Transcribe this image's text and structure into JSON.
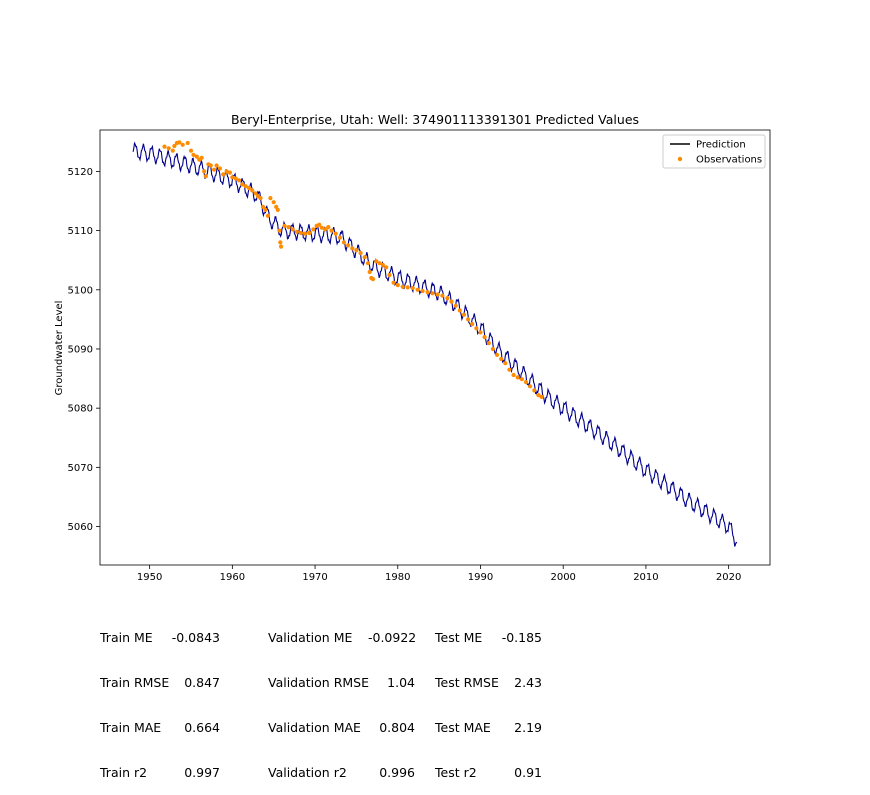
{
  "chart_data": {
    "type": "line",
    "title": "Beryl-Enterprise, Utah: Well: 374901113391301 Predicted Values",
    "xlabel": "",
    "ylabel": "Groundwater Level",
    "xlim": [
      1944,
      2025
    ],
    "ylim": [
      5053.5,
      5127
    ],
    "x_ticks": [
      1950,
      1960,
      1970,
      1980,
      1990,
      2000,
      2010,
      2020
    ],
    "y_ticks": [
      5060,
      5070,
      5080,
      5090,
      5100,
      5110,
      5120
    ],
    "legend_position": "top-right",
    "grid": false,
    "series": [
      {
        "name": "Prediction",
        "kind": "line",
        "color": "#00008b",
        "x_range": [
          1948.0,
          2021.0
        ],
        "trend_anchors": [
          [
            1948.0,
            5123.5
          ],
          [
            1950,
            5123
          ],
          [
            1955,
            5121
          ],
          [
            1960,
            5118.5
          ],
          [
            1963,
            5116
          ],
          [
            1964.5,
            5112
          ],
          [
            1966,
            5110
          ],
          [
            1970,
            5109.5
          ],
          [
            1973,
            5109
          ],
          [
            1975,
            5106.5
          ],
          [
            1977,
            5104
          ],
          [
            1980,
            5102
          ],
          [
            1983,
            5100.5
          ],
          [
            1985,
            5099.5
          ],
          [
            1987,
            5097.5
          ],
          [
            1990,
            5093.5
          ],
          [
            1992,
            5090
          ],
          [
            1995,
            5086
          ],
          [
            1998,
            5082
          ],
          [
            2000,
            5080
          ],
          [
            2005,
            5075
          ],
          [
            2010,
            5069.5
          ],
          [
            2015,
            5064.5
          ],
          [
            2020,
            5060
          ],
          [
            2021.0,
            5057.5
          ]
        ],
        "seasonal_amplitude": 1.2
      },
      {
        "name": "Observations",
        "kind": "scatter",
        "color": "#ff8c00",
        "points": [
          [
            1951.8,
            5124.2
          ],
          [
            1952.3,
            5123.9
          ],
          [
            1952.8,
            5123.5
          ],
          [
            1953.0,
            5124.3
          ],
          [
            1953.3,
            5124.8
          ],
          [
            1953.6,
            5124.9
          ],
          [
            1954.0,
            5124.5
          ],
          [
            1954.6,
            5124.8
          ],
          [
            1955.0,
            5123.5
          ],
          [
            1955.3,
            5122.8
          ],
          [
            1955.7,
            5122.5
          ],
          [
            1956.0,
            5122.0
          ],
          [
            1956.3,
            5122.3
          ],
          [
            1956.6,
            5120.0
          ],
          [
            1956.8,
            5119.2
          ],
          [
            1957.1,
            5121.2
          ],
          [
            1957.4,
            5121.0
          ],
          [
            1957.8,
            5120.3
          ],
          [
            1958.1,
            5121.0
          ],
          [
            1958.5,
            5120.5
          ],
          [
            1958.9,
            5119.5
          ],
          [
            1959.3,
            5120.0
          ],
          [
            1959.7,
            5119.8
          ],
          [
            1960.0,
            5119.0
          ],
          [
            1960.4,
            5118.8
          ],
          [
            1960.8,
            5118.5
          ],
          [
            1961.2,
            5117.8
          ],
          [
            1961.6,
            5117.5
          ],
          [
            1962.0,
            5117.2
          ],
          [
            1962.4,
            5116.8
          ],
          [
            1962.8,
            5116.3
          ],
          [
            1963.1,
            5115.8
          ],
          [
            1963.4,
            5115.5
          ],
          [
            1963.7,
            5114.0
          ],
          [
            1964.0,
            5113.5
          ],
          [
            1964.3,
            5112.5
          ],
          [
            1964.6,
            5115.5
          ],
          [
            1965.0,
            5114.8
          ],
          [
            1965.3,
            5114.0
          ],
          [
            1965.5,
            5113.5
          ],
          [
            1965.7,
            5110.0
          ],
          [
            1965.8,
            5108.0
          ],
          [
            1965.9,
            5107.3
          ],
          [
            1966.3,
            5110.8
          ],
          [
            1966.8,
            5110.6
          ],
          [
            1967.3,
            5110.2
          ],
          [
            1967.8,
            5109.8
          ],
          [
            1968.3,
            5109.6
          ],
          [
            1968.8,
            5109.5
          ],
          [
            1969.3,
            5109.6
          ],
          [
            1969.8,
            5110.2
          ],
          [
            1970.2,
            5110.8
          ],
          [
            1970.5,
            5111.0
          ],
          [
            1970.8,
            5110.5
          ],
          [
            1971.2,
            5110.2
          ],
          [
            1971.6,
            5110.6
          ],
          [
            1972.0,
            5110.0
          ],
          [
            1972.5,
            5109.5
          ],
          [
            1973.0,
            5108.8
          ],
          [
            1973.5,
            5108.0
          ],
          [
            1974.0,
            5107.5
          ],
          [
            1974.5,
            5107.0
          ],
          [
            1975.0,
            5106.7
          ],
          [
            1975.5,
            5106.2
          ],
          [
            1976.0,
            5105.5
          ],
          [
            1976.4,
            5104.5
          ],
          [
            1976.6,
            5103.0
          ],
          [
            1976.8,
            5102.0
          ],
          [
            1977.0,
            5101.8
          ],
          [
            1977.4,
            5104.8
          ],
          [
            1977.8,
            5104.5
          ],
          [
            1978.2,
            5104.2
          ],
          [
            1978.6,
            5103.8
          ],
          [
            1979.0,
            5102.5
          ],
          [
            1979.5,
            5101.2
          ],
          [
            1980.0,
            5100.8
          ],
          [
            1980.6,
            5100.5
          ],
          [
            1981.2,
            5100.4
          ],
          [
            1981.8,
            5100.3
          ],
          [
            1982.4,
            5100.0
          ],
          [
            1983.0,
            5099.8
          ],
          [
            1983.6,
            5099.6
          ],
          [
            1984.2,
            5099.4
          ],
          [
            1984.8,
            5099.2
          ],
          [
            1985.4,
            5099.0
          ],
          [
            1986.0,
            5098.6
          ],
          [
            1986.5,
            5098.0
          ],
          [
            1987.0,
            5097.3
          ],
          [
            1987.5,
            5096.5
          ],
          [
            1988.0,
            5095.8
          ],
          [
            1988.5,
            5095.0
          ],
          [
            1989.0,
            5094.2
          ],
          [
            1989.5,
            5093.5
          ],
          [
            1990.0,
            5092.8
          ],
          [
            1990.5,
            5092.0
          ],
          [
            1991.0,
            5091.0
          ],
          [
            1991.5,
            5090.0
          ],
          [
            1992.0,
            5089.0
          ],
          [
            1992.5,
            5088.3
          ],
          [
            1993.0,
            5087.6
          ],
          [
            1993.5,
            5086.5
          ],
          [
            1994.0,
            5085.6
          ],
          [
            1994.5,
            5085.2
          ],
          [
            1995.0,
            5084.9
          ],
          [
            1995.5,
            5084.4
          ],
          [
            1996.0,
            5083.7
          ],
          [
            1996.5,
            5083.0
          ],
          [
            1997.0,
            5082.2
          ],
          [
            1997.4,
            5081.9
          ]
        ]
      }
    ]
  },
  "stats": {
    "train": [
      {
        "label": "Train ME",
        "value": "-0.0843"
      },
      {
        "label": "Train RMSE",
        "value": "0.847"
      },
      {
        "label": "Train MAE",
        "value": "0.664"
      },
      {
        "label": "Train r2",
        "value": "0.997"
      }
    ],
    "validation": [
      {
        "label": "Validation ME",
        "value": "-0.0922"
      },
      {
        "label": "Validation RMSE",
        "value": "1.04"
      },
      {
        "label": "Validation MAE",
        "value": "0.804"
      },
      {
        "label": "Validation r2",
        "value": "0.996"
      }
    ],
    "test": [
      {
        "label": "Test ME",
        "value": "-0.185"
      },
      {
        "label": "Test RMSE",
        "value": "2.43"
      },
      {
        "label": "Test MAE",
        "value": "2.19"
      },
      {
        "label": "Test r2",
        "value": "0.91"
      }
    ]
  }
}
